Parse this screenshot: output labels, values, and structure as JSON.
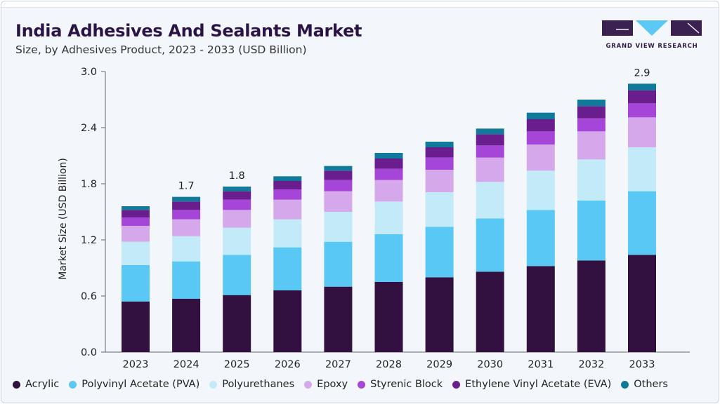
{
  "header": {
    "title": "India Adhesives And Sealants Market",
    "subtitle": "Size, by Adhesives Product, 2023 - 2033 (USD Billion)"
  },
  "logo": {
    "text": "GRAND VIEW RESEARCH",
    "colors": {
      "dark": "#3b2151",
      "accent": "#5bc8f5"
    }
  },
  "chart_data": {
    "type": "bar",
    "stacked": true,
    "title": "",
    "xlabel": "",
    "ylabel": "Market Size (USD Billion)",
    "ylim": [
      0,
      3.0
    ],
    "yticks": [
      "0.0",
      "0.6",
      "1.2",
      "1.8",
      "2.4",
      "3.0"
    ],
    "ytick_values": [
      0,
      0.6,
      1.2,
      1.8,
      2.4,
      3.0
    ],
    "grid": false,
    "legend_position": "bottom",
    "categories": [
      "2023",
      "2024",
      "2025",
      "2026",
      "2027",
      "2028",
      "2029",
      "2030",
      "2031",
      "2032",
      "2033"
    ],
    "series": [
      {
        "name": "Acrylic",
        "color": "#32103f",
        "values": [
          0.54,
          0.57,
          0.61,
          0.66,
          0.7,
          0.75,
          0.8,
          0.86,
          0.92,
          0.98,
          1.04
        ]
      },
      {
        "name": "Polyvinyl Acetate (PVA)",
        "color": "#5ac8f5",
        "values": [
          0.39,
          0.4,
          0.43,
          0.46,
          0.48,
          0.51,
          0.54,
          0.57,
          0.6,
          0.64,
          0.68
        ]
      },
      {
        "name": "Polyurethanes",
        "color": "#c3eaf9",
        "values": [
          0.25,
          0.27,
          0.29,
          0.3,
          0.32,
          0.35,
          0.37,
          0.39,
          0.42,
          0.44,
          0.47
        ]
      },
      {
        "name": "Epoxy",
        "color": "#d4a8ea",
        "values": [
          0.17,
          0.18,
          0.19,
          0.21,
          0.22,
          0.23,
          0.24,
          0.26,
          0.28,
          0.3,
          0.32
        ]
      },
      {
        "name": "Styrenic Block",
        "color": "#a646d8",
        "values": [
          0.09,
          0.1,
          0.11,
          0.11,
          0.12,
          0.12,
          0.13,
          0.13,
          0.14,
          0.14,
          0.15
        ]
      },
      {
        "name": "Ethylene Vinyl Acetate (EVA)",
        "color": "#6a1e8d",
        "values": [
          0.08,
          0.09,
          0.09,
          0.09,
          0.1,
          0.11,
          0.11,
          0.12,
          0.13,
          0.13,
          0.14
        ]
      },
      {
        "name": "Others",
        "color": "#117a9b",
        "values": [
          0.04,
          0.05,
          0.05,
          0.05,
          0.05,
          0.06,
          0.06,
          0.06,
          0.07,
          0.07,
          0.07
        ]
      }
    ],
    "annotations": [
      {
        "category": "2024",
        "label": "1.7"
      },
      {
        "category": "2025",
        "label": "1.8"
      },
      {
        "category": "2033",
        "label": "2.9"
      }
    ]
  }
}
